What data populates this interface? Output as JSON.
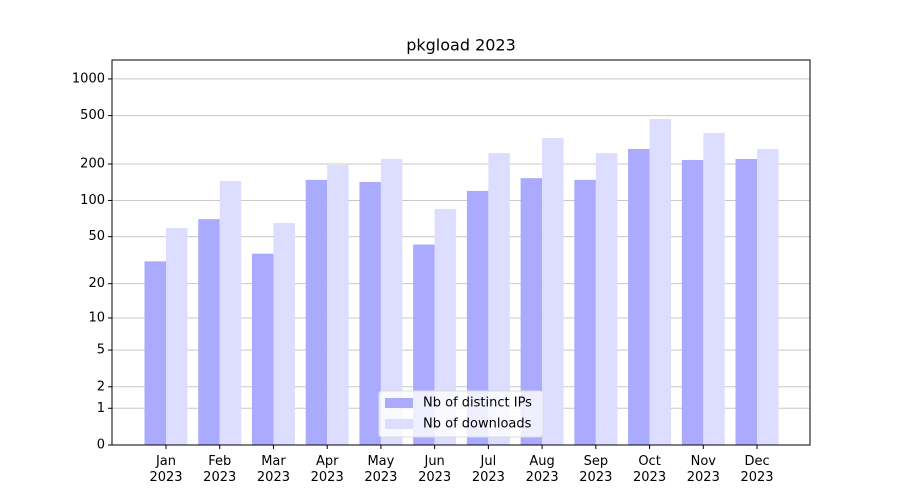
{
  "chart_data": {
    "type": "bar",
    "title": "pkgload 2023",
    "categories": [
      "Jan 2023",
      "Feb 2023",
      "Mar 2023",
      "Apr 2023",
      "May 2023",
      "Jun 2023",
      "Jul 2023",
      "Aug 2023",
      "Sep 2023",
      "Oct 2023",
      "Nov 2023",
      "Dec 2023"
    ],
    "series": [
      {
        "name": "Nb of distinct IPs",
        "color": "#aaaaff",
        "values": [
          31,
          70,
          36,
          148,
          142,
          43,
          120,
          153,
          148,
          266,
          216,
          220
        ]
      },
      {
        "name": "Nb of downloads",
        "color": "#ddddff",
        "values": [
          59,
          145,
          65,
          196,
          220,
          85,
          246,
          327,
          246,
          469,
          360,
          266
        ]
      }
    ],
    "yscale": "log1p",
    "ylim": [
      0,
      1430
    ],
    "yticks": [
      0,
      1,
      2,
      5,
      10,
      20,
      50,
      100,
      200,
      500,
      1000
    ],
    "grid": true,
    "legend": "lower center"
  }
}
